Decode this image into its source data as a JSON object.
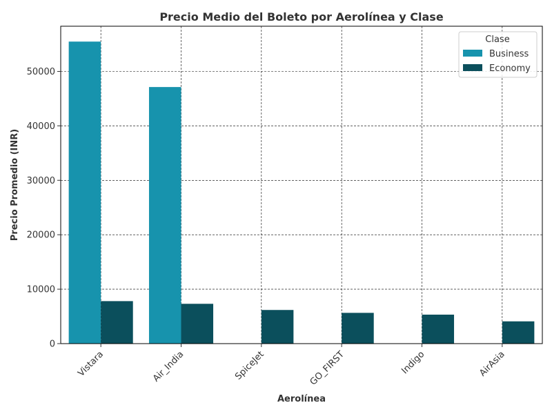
{
  "chart_data": {
    "type": "bar",
    "title": "Precio Medio del Boleto por Aerolínea y Clase",
    "xlabel": "Aerolínea",
    "ylabel": "Precio Promedio (INR)",
    "categories": [
      "Vistara",
      "Air_India",
      "SpiceJet",
      "GO_FIRST",
      "Indigo",
      "AirAsia"
    ],
    "series": [
      {
        "name": "Business",
        "color": "#1793ad",
        "values": [
          55477,
          47131,
          null,
          null,
          null,
          null
        ]
      },
      {
        "name": "Economy",
        "color": "#0b4f5c",
        "values": [
          7806,
          7313,
          6179,
          5652,
          5324,
          4091
        ]
      }
    ],
    "ylim": [
      0,
      58300
    ],
    "yticks": [
      0,
      10000,
      20000,
      30000,
      40000,
      50000
    ],
    "grid": true,
    "legend": {
      "title": "Clase",
      "position": "top-right"
    }
  }
}
